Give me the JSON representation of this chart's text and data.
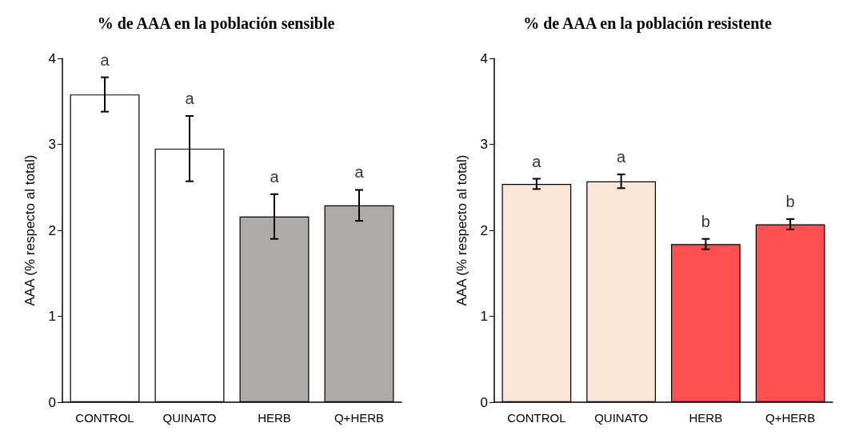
{
  "chart_data": [
    {
      "type": "bar",
      "title": "% de AAA en la población sensible",
      "ylabel": "AAA (% respecto al total)",
      "categories": [
        "CONTROL",
        "QUINATO",
        "HERB",
        "Q+HERB"
      ],
      "values": [
        3.58,
        2.95,
        2.16,
        2.29
      ],
      "errors": [
        0.2,
        0.38,
        0.26,
        0.18
      ],
      "colors": [
        "#ffffff",
        "#ffffff",
        "#aeaaaa",
        "#aeaaaa"
      ],
      "ylim": [
        0,
        4
      ],
      "yticks": [
        0,
        1,
        2,
        3,
        4
      ],
      "annotations": [
        "a",
        "a",
        "a",
        "a"
      ]
    },
    {
      "type": "bar",
      "title": "% de AAA en la población resistente",
      "ylabel": "AAA (% respecto al total)",
      "categories": [
        "CONTROL",
        "QUINATO",
        "HERB",
        "Q+HERB"
      ],
      "values": [
        2.54,
        2.57,
        1.84,
        2.07
      ],
      "errors": [
        0.06,
        0.08,
        0.06,
        0.06
      ],
      "colors": [
        "#fbe5d6",
        "#fbe5d6",
        "#ff5050",
        "#ff5050"
      ],
      "ylim": [
        0,
        4
      ],
      "yticks": [
        0,
        1,
        2,
        3,
        4
      ],
      "annotations": [
        "a",
        "a",
        "b",
        "b"
      ]
    }
  ]
}
